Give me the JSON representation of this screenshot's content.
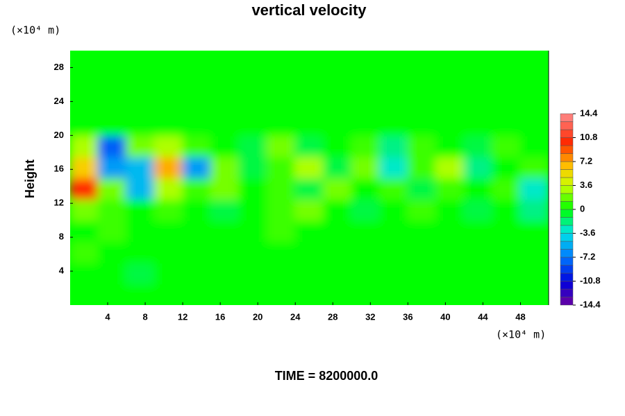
{
  "chart_data": {
    "type": "heatmap",
    "title": "vertical velocity",
    "ylabel": "Height",
    "x_unit": "(×10⁴ m)",
    "y_unit": "(×10⁴ m)",
    "footer": "TIME = 8200000.0",
    "xlim": [
      0,
      51
    ],
    "ylim": [
      0,
      30
    ],
    "xticks": [
      4,
      8,
      12,
      16,
      20,
      24,
      28,
      32,
      36,
      40,
      44,
      48
    ],
    "yticks": [
      4,
      8,
      12,
      16,
      20,
      24,
      28
    ],
    "x": [
      1.5,
      4.5,
      7.5,
      10.5,
      13.5,
      16.5,
      19.5,
      22.5,
      25.5,
      28.5,
      31.5,
      34.5,
      37.5,
      40.5,
      43.5,
      46.5,
      49.5
    ],
    "y": [
      1.25,
      3.75,
      6.25,
      8.75,
      11.25,
      13.75,
      16.25,
      18.75,
      21.25,
      23.75,
      26.25,
      28.75
    ],
    "z": [
      [
        0,
        0,
        0,
        0,
        0,
        0,
        0,
        0,
        0,
        0,
        0,
        0,
        0,
        0,
        0,
        0,
        0
      ],
      [
        0,
        0,
        -1,
        0,
        0,
        0,
        0,
        0,
        0,
        0,
        0,
        0,
        0,
        0,
        0,
        0,
        0
      ],
      [
        1,
        0,
        0,
        0,
        0,
        0,
        0,
        0,
        0,
        0,
        0,
        0,
        0,
        0,
        0,
        0,
        0
      ],
      [
        0,
        1,
        0,
        0,
        0,
        0,
        0,
        1,
        0,
        0,
        0,
        0,
        0,
        0,
        0,
        0,
        0
      ],
      [
        2,
        1,
        0,
        1,
        0,
        -1,
        0,
        1,
        2,
        0,
        -1,
        0,
        1,
        0,
        -1,
        0,
        -2
      ],
      [
        10,
        2,
        -5,
        3,
        1,
        2,
        0,
        1,
        -1,
        2,
        0,
        1,
        -1,
        1,
        0,
        1,
        -3
      ],
      [
        6,
        -6,
        -5,
        7,
        -6,
        2,
        -1,
        1,
        3,
        -1,
        2,
        -3,
        1,
        3,
        -2,
        0,
        1
      ],
      [
        3,
        -8,
        2,
        3,
        1,
        0,
        -1,
        2,
        -1,
        0,
        1,
        -2,
        1,
        0,
        -1,
        1,
        0
      ],
      [
        0,
        0,
        0,
        0,
        0,
        0,
        0,
        0,
        0,
        0,
        0,
        0,
        0,
        0,
        0,
        0,
        0
      ],
      [
        0,
        0,
        0,
        0,
        0,
        0,
        0,
        0,
        0,
        0,
        0,
        0,
        0,
        0,
        0,
        0,
        0
      ],
      [
        0,
        0,
        0,
        0,
        0,
        0,
        0,
        0,
        0,
        0,
        0,
        0,
        0,
        0,
        0,
        0,
        0
      ],
      [
        0,
        0,
        0,
        0,
        0,
        0,
        0,
        0,
        0,
        0,
        0,
        0,
        0,
        0,
        0,
        0,
        0
      ]
    ],
    "zlim": [
      -14.4,
      14.4
    ],
    "zticks": [
      14.4,
      10.8,
      7.2,
      3.6,
      0,
      -3.6,
      -7.2,
      -10.8,
      -14.4
    ]
  }
}
